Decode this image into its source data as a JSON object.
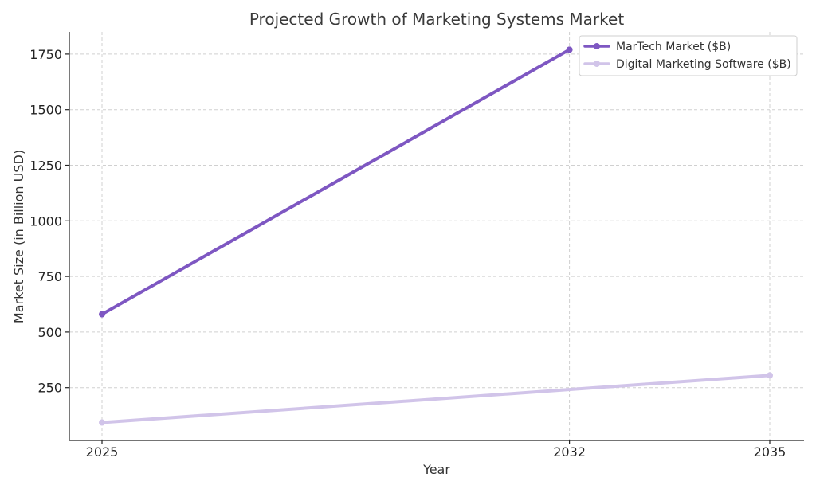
{
  "chart_data": {
    "type": "line",
    "title": "Projected Growth of Marketing Systems Market",
    "xlabel": "Year",
    "ylabel": "Market Size (in Billion USD)",
    "x_ticks": [
      2025,
      2032,
      2035
    ],
    "x_range": [
      2025,
      2035
    ],
    "ylim": [
      0,
      1850
    ],
    "y_ticks": [
      250,
      500,
      750,
      1000,
      1250,
      1500,
      1750
    ],
    "grid": true,
    "legend_position": "top-right",
    "series": [
      {
        "name": "MarTech Market ($B)",
        "color": "#7e57c2",
        "points": [
          {
            "x": 2025,
            "y": 580
          },
          {
            "x": 2032,
            "y": 1770
          }
        ]
      },
      {
        "name": "Digital Marketing Software ($B)",
        "color": "#d1c4e9",
        "points": [
          {
            "x": 2025,
            "y": 93
          },
          {
            "x": 2035,
            "y": 305
          }
        ]
      }
    ]
  }
}
